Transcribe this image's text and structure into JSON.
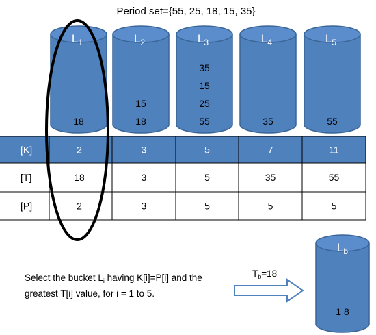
{
  "title": "Period set={55, 25, 18, 15, 35}",
  "colors": {
    "bucket_fill": "#4f81bd",
    "bucket_edge": "#3a6597",
    "bucket_top": "#5b8ccc",
    "header_row": "#4f81bd",
    "grid": "#000000",
    "text_dark": "#000000",
    "text_light": "#ffffff"
  },
  "buckets": [
    {
      "letter": "L",
      "sub": "1",
      "values": [
        "18"
      ]
    },
    {
      "letter": "L",
      "sub": "2",
      "values": [
        "15",
        "18"
      ]
    },
    {
      "letter": "L",
      "sub": "3",
      "values": [
        "35",
        "15",
        "25",
        "55"
      ]
    },
    {
      "letter": "L",
      "sub": "4",
      "values": [
        "35"
      ]
    },
    {
      "letter": "L",
      "sub": "5",
      "values": [
        "55"
      ]
    }
  ],
  "table": {
    "rows": [
      {
        "label": "[K]",
        "cells": [
          "2",
          "3",
          "5",
          "7",
          "11"
        ],
        "header": true
      },
      {
        "label": "[T]",
        "cells": [
          "18",
          "3",
          "5",
          "35",
          "55"
        ]
      },
      {
        "label": "[P]",
        "cells": [
          "2",
          "3",
          "5",
          "5",
          "5"
        ]
      }
    ]
  },
  "caption": {
    "line1_pre": "Select the bucket L",
    "line1_sub": "i",
    "line1_post": " having K[i]=P[i] and the",
    "line2": "greatest T[i] value, for i = 1 to 5."
  },
  "arrow": {
    "label_main": "T",
    "label_sub": "b",
    "label_value": "=18"
  },
  "result_bucket": {
    "letter": "L",
    "sub": "b",
    "value": "1 8"
  }
}
